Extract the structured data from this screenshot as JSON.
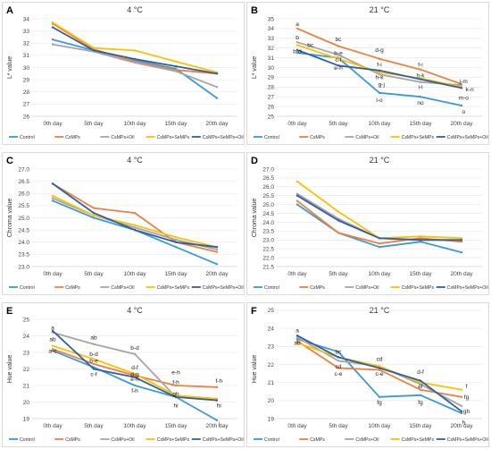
{
  "colors": {
    "Control": "#3a9ad9",
    "CsMPs": "#f07f3c",
    "CsMPs+Oil": "#a5a5a5",
    "CsMPs+SeMPs": "#ffc000",
    "CsMPs+SeMPs+Oil": "#2f5fa8"
  },
  "legend_entries": [
    "Control",
    "CsMPs",
    "CsMPs+Oil",
    "CsMPs+SeMPs",
    "CsMPs+SeMPs+Oil"
  ],
  "chart_data": [
    {
      "panel": "A",
      "title": "4 °C",
      "type": "line",
      "ylabel": "L* value",
      "categories": [
        "0th day",
        "5th day",
        "10th day",
        "15th day",
        "20th day"
      ],
      "ylim": [
        26,
        34
      ],
      "ystep": 1,
      "series": [
        {
          "name": "Control",
          "values": [
            32.3,
            31.4,
            30.6,
            29.9,
            27.5
          ]
        },
        {
          "name": "CsMPs",
          "values": [
            33.6,
            31.5,
            30.5,
            29.8,
            29.5
          ]
        },
        {
          "name": "CsMPs+Oil",
          "values": [
            31.9,
            31.3,
            30.4,
            29.7,
            28.4
          ]
        },
        {
          "name": "CsMPs+SeMPs",
          "values": [
            33.7,
            31.6,
            31.4,
            30.5,
            29.6
          ]
        },
        {
          "name": "CsMPs+SeMPs+Oil",
          "values": [
            33.3,
            31.4,
            30.7,
            30.1,
            29.5
          ]
        }
      ],
      "annotations": []
    },
    {
      "panel": "B",
      "title": "21 °C",
      "type": "line",
      "ylabel": "L* value",
      "categories": [
        "0th day",
        "5th day",
        "10th day",
        "15th day",
        "20th day"
      ],
      "ylim": [
        25,
        35
      ],
      "ystep": 1,
      "series": [
        {
          "name": "Control",
          "values": [
            31.5,
            31.0,
            27.4,
            27.0,
            26.1
          ]
        },
        {
          "name": "CsMPs",
          "values": [
            34.0,
            32.2,
            30.9,
            29.8,
            28.3
          ]
        },
        {
          "name": "CsMPs+Oil",
          "values": [
            32.6,
            31.3,
            29.3,
            28.5,
            28.2
          ]
        },
        {
          "name": "CsMPs+SeMPs",
          "values": [
            32.3,
            30.9,
            29.5,
            28.9,
            28.0
          ]
        },
        {
          "name": "CsMPs+SeMPs+Oil",
          "values": [
            31.8,
            30.2,
            29.7,
            28.8,
            27.9
          ]
        }
      ],
      "annotations": [
        {
          "text": "a",
          "x": 0,
          "y": 34.5
        },
        {
          "text": "b",
          "x": 0,
          "y": 33.1
        },
        {
          "text": "bc",
          "x": 0.32,
          "y": 32.3
        },
        {
          "text": "b-d",
          "x": 0,
          "y": 31.7
        },
        {
          "text": "bc",
          "x": 1,
          "y": 32.9
        },
        {
          "text": "b-e",
          "x": 1,
          "y": 31.5
        },
        {
          "text": "c-f",
          "x": 1,
          "y": 30.8
        },
        {
          "text": "e-h",
          "x": 1,
          "y": 30.0
        },
        {
          "text": "d-g",
          "x": 2,
          "y": 31.8
        },
        {
          "text": "f-i",
          "x": 2,
          "y": 30.3
        },
        {
          "text": "h-k",
          "x": 2,
          "y": 29.0
        },
        {
          "text": "g-j",
          "x": 2.05,
          "y": 28.3
        },
        {
          "text": "l-o",
          "x": 2,
          "y": 26.7
        },
        {
          "text": "f-i",
          "x": 3,
          "y": 30.3
        },
        {
          "text": "h-k",
          "x": 3,
          "y": 29.2
        },
        {
          "text": "i-l",
          "x": 3,
          "y": 28.0
        },
        {
          "text": "no",
          "x": 3,
          "y": 26.4
        },
        {
          "text": "j-m",
          "x": 4.05,
          "y": 28.6
        },
        {
          "text": "k-n",
          "x": 4.2,
          "y": 27.8
        },
        {
          "text": "m-o",
          "x": 4.05,
          "y": 26.9
        },
        {
          "text": "o",
          "x": 4.05,
          "y": 25.5
        }
      ]
    },
    {
      "panel": "C",
      "title": "4 °C",
      "type": "line",
      "ylabel": "Chroma value",
      "categories": [
        "0th day",
        "5th day",
        "10th day",
        "15th day",
        "20th day"
      ],
      "ylim": [
        23,
        27
      ],
      "ystep": 0.5,
      "series": [
        {
          "name": "Control",
          "values": [
            25.7,
            25.0,
            24.5,
            23.8,
            23.1
          ]
        },
        {
          "name": "CsMPs",
          "values": [
            26.4,
            25.4,
            25.2,
            24.0,
            23.6
          ]
        },
        {
          "name": "CsMPs+Oil",
          "values": [
            25.8,
            25.1,
            24.6,
            24.1,
            23.7
          ]
        },
        {
          "name": "CsMPs+SeMPs",
          "values": [
            25.9,
            25.1,
            24.7,
            24.2,
            23.8
          ]
        },
        {
          "name": "CsMPs+SeMPs+Oil",
          "values": [
            26.4,
            25.2,
            24.5,
            24.0,
            23.8
          ]
        }
      ],
      "annotations": []
    },
    {
      "panel": "D",
      "title": "21 °C",
      "type": "line",
      "ylabel": "Chroma value",
      "categories": [
        "0th day",
        "5th day",
        "10th day",
        "15th day",
        "20th day"
      ],
      "ylim": [
        21.5,
        27
      ],
      "ystep": 0.5,
      "series": [
        {
          "name": "Control",
          "values": [
            25.0,
            23.4,
            22.6,
            22.9,
            22.3
          ]
        },
        {
          "name": "CsMPs",
          "values": [
            25.2,
            23.4,
            22.8,
            23.1,
            22.9
          ]
        },
        {
          "name": "CsMPs+Oil",
          "values": [
            25.6,
            24.2,
            23.1,
            23.0,
            23.0
          ]
        },
        {
          "name": "CsMPs+SeMPs",
          "values": [
            26.3,
            24.6,
            23.1,
            23.2,
            23.1
          ]
        },
        {
          "name": "CsMPs+SeMPs+Oil",
          "values": [
            25.5,
            24.1,
            23.1,
            23.0,
            23.0
          ]
        }
      ],
      "annotations": []
    },
    {
      "panel": "E",
      "title": "4 °C",
      "type": "line",
      "ylabel": "Hue value",
      "categories": [
        "0th day",
        "5th day",
        "10th day",
        "15th day",
        "20th day"
      ],
      "ylim": [
        19,
        25
      ],
      "ystep": 1,
      "series": [
        {
          "name": "Control",
          "values": [
            23.1,
            22.1,
            21.0,
            20.3,
            18.9
          ]
        },
        {
          "name": "CsMPs",
          "values": [
            23.2,
            22.3,
            21.6,
            21.0,
            20.9
          ]
        },
        {
          "name": "CsMPs+Oil",
          "values": [
            24.2,
            23.5,
            22.9,
            20.3,
            20.2
          ]
        },
        {
          "name": "CsMPs+SeMPs",
          "values": [
            23.4,
            22.6,
            21.7,
            20.4,
            20.2
          ]
        },
        {
          "name": "CsMPs+SeMPs+Oil",
          "values": [
            24.3,
            22.0,
            21.5,
            20.3,
            20.1
          ]
        }
      ],
      "annotations": [
        {
          "text": "a",
          "x": 0,
          "y": 24.5
        },
        {
          "text": "ab",
          "x": 0,
          "y": 23.8
        },
        {
          "text": "a-c",
          "x": 0,
          "y": 23.1
        },
        {
          "text": "ab",
          "x": 1,
          "y": 23.9
        },
        {
          "text": "b-d",
          "x": 1,
          "y": 22.9
        },
        {
          "text": "b-e",
          "x": 1,
          "y": 22.5
        },
        {
          "text": "c-f",
          "x": 1,
          "y": 21.7
        },
        {
          "text": "b-d",
          "x": 2,
          "y": 23.3
        },
        {
          "text": "d-f",
          "x": 2,
          "y": 22.1
        },
        {
          "text": "d-g",
          "x": 2,
          "y": 21.7
        },
        {
          "text": "e-h",
          "x": 2,
          "y": 21.4
        },
        {
          "text": "f-h",
          "x": 2,
          "y": 20.7
        },
        {
          "text": "e-h",
          "x": 3,
          "y": 21.8
        },
        {
          "text": "f-h",
          "x": 3,
          "y": 21.2
        },
        {
          "text": "gh",
          "x": 3,
          "y": 20.5
        },
        {
          "text": "hi",
          "x": 3,
          "y": 19.8
        },
        {
          "text": "f-h",
          "x": 4.05,
          "y": 21.3
        },
        {
          "text": "hi",
          "x": 4.05,
          "y": 19.8
        },
        {
          "text": "i",
          "x": 4.05,
          "y": 18.7
        }
      ]
    },
    {
      "panel": "F",
      "title": "21 °C",
      "type": "line",
      "ylabel": "Hue value",
      "categories": [
        "0th day",
        "5th day",
        "10th day",
        "15th day",
        "20th day"
      ],
      "ylim": [
        19,
        24.5
      ],
      "ystep": 1,
      "series": [
        {
          "name": "Control",
          "values": [
            23.4,
            22.7,
            20.2,
            20.3,
            19.3
          ]
        },
        {
          "name": "CsMPs",
          "values": [
            23.3,
            21.8,
            21.7,
            20.6,
            20.2
          ]
        },
        {
          "name": "CsMPs+Oil",
          "values": [
            23.5,
            22.2,
            21.9,
            20.9,
            19.7
          ]
        },
        {
          "name": "CsMPs+SeMPs",
          "values": [
            23.2,
            22.4,
            21.9,
            21.0,
            20.6
          ]
        },
        {
          "name": "CsMPs+SeMPs+Oil",
          "values": [
            23.6,
            22.4,
            21.8,
            21.1,
            19.4
          ]
        }
      ],
      "annotations": [
        {
          "text": "a",
          "x": 0,
          "y": 23.9
        },
        {
          "text": "ab",
          "x": 0,
          "y": 23.2
        },
        {
          "text": "bc",
          "x": 1,
          "y": 22.7
        },
        {
          "text": "cd",
          "x": 1,
          "y": 21.9
        },
        {
          "text": "c-e",
          "x": 1,
          "y": 21.5
        },
        {
          "text": "cd",
          "x": 2,
          "y": 22.3
        },
        {
          "text": "c-e",
          "x": 2,
          "y": 21.5
        },
        {
          "text": "fg",
          "x": 2,
          "y": 19.9
        },
        {
          "text": "d-f",
          "x": 3,
          "y": 21.6
        },
        {
          "text": "ef",
          "x": 3,
          "y": 20.8
        },
        {
          "text": "fg",
          "x": 3,
          "y": 19.9
        },
        {
          "text": "f",
          "x": 4.12,
          "y": 20.8
        },
        {
          "text": "fg",
          "x": 4.12,
          "y": 20.2
        },
        {
          "text": "gh",
          "x": 4.12,
          "y": 19.4
        },
        {
          "text": "h",
          "x": 4.05,
          "y": 18.8
        }
      ]
    }
  ]
}
